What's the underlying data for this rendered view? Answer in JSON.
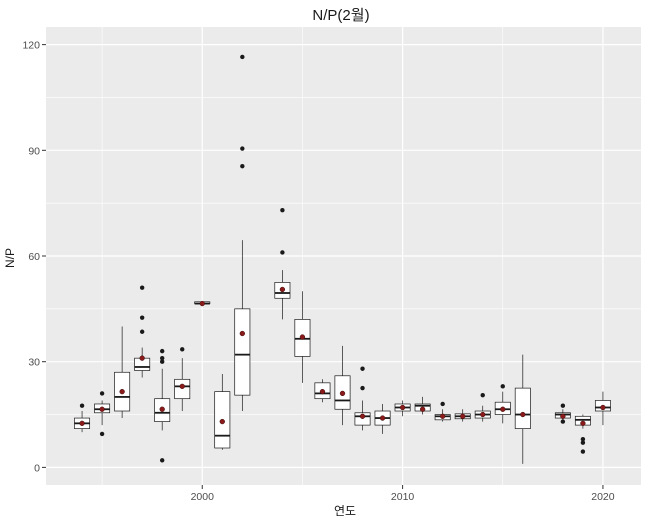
{
  "chart_data": {
    "type": "boxplot",
    "title": "N/P(2월)",
    "xlabel": "연도",
    "ylabel": "N/P",
    "xlim": [
      1992.2,
      2021.9
    ],
    "ylim": [
      -5,
      125
    ],
    "x_ticks": [
      2000,
      2010,
      2020
    ],
    "y_ticks": [
      0,
      30,
      60,
      90,
      120
    ],
    "grid": true,
    "colors": {
      "panel": "#EBEBEB",
      "grid": "#FFFFFF",
      "box_fill": "#FFFFFF",
      "box_line": "#1A1A1A",
      "outlier": "#1A1A1A",
      "mean_point": "#8B1A1A"
    },
    "boxes": [
      {
        "x": 1994,
        "lw": 10,
        "q1": 11,
        "med": 12.5,
        "q3": 14,
        "uw": 16,
        "mean": 12.5,
        "out": [
          17.5
        ]
      },
      {
        "x": 1995,
        "lw": 12,
        "q1": 15.5,
        "med": 16.5,
        "q3": 18,
        "uw": 19,
        "mean": 16.5,
        "out": [
          9.5,
          21
        ]
      },
      {
        "x": 1996,
        "lw": 14,
        "q1": 16,
        "med": 20,
        "q3": 27,
        "uw": 40,
        "mean": 21.5,
        "out": []
      },
      {
        "x": 1997,
        "lw": 25.5,
        "q1": 27.5,
        "med": 28.5,
        "q3": 31,
        "uw": 34,
        "mean": 31,
        "out": [
          38.5,
          42.5,
          51
        ]
      },
      {
        "x": 1998,
        "lw": 10.5,
        "q1": 13,
        "med": 15.5,
        "q3": 19.5,
        "uw": 28,
        "mean": 16.5,
        "out": [
          30,
          31,
          33,
          2
        ]
      },
      {
        "x": 1999,
        "lw": 16,
        "q1": 19.5,
        "med": 23,
        "q3": 25,
        "uw": 31,
        "mean": 23,
        "out": [
          33.5
        ]
      },
      {
        "x": 2000,
        "lw": 46.5,
        "q1": 46.5,
        "med": 46.5,
        "q3": 47,
        "uw": 47,
        "mean": 46.5,
        "out": []
      },
      {
        "x": 2001,
        "lw": 5,
        "q1": 5.5,
        "med": 9,
        "q3": 21.5,
        "uw": 26.5,
        "mean": 13,
        "out": []
      },
      {
        "x": 2002,
        "lw": 16,
        "q1": 20.5,
        "med": 32,
        "q3": 45,
        "uw": 64.5,
        "mean": 38,
        "out": [
          85.5,
          90.5,
          116.5
        ]
      },
      {
        "x": 2004,
        "lw": 42,
        "q1": 48,
        "med": 49.5,
        "q3": 52.5,
        "uw": 56,
        "mean": 50.5,
        "out": [
          61,
          73
        ]
      },
      {
        "x": 2005,
        "lw": 24,
        "q1": 31.5,
        "med": 36.5,
        "q3": 42,
        "uw": 50,
        "mean": 37,
        "out": []
      },
      {
        "x": 2006,
        "lw": 18.5,
        "q1": 19.5,
        "med": 21,
        "q3": 24,
        "uw": 25,
        "mean": 21.5,
        "out": []
      },
      {
        "x": 2007,
        "lw": 12,
        "q1": 16.5,
        "med": 19,
        "q3": 26,
        "uw": 34.5,
        "mean": 21,
        "out": []
      },
      {
        "x": 2008,
        "lw": 10.5,
        "q1": 12,
        "med": 14.5,
        "q3": 15.5,
        "uw": 19,
        "mean": 14.5,
        "out": [
          22.5,
          28
        ]
      },
      {
        "x": 2009,
        "lw": 9.5,
        "q1": 12,
        "med": 14,
        "q3": 16,
        "uw": 18,
        "mean": 14,
        "out": []
      },
      {
        "x": 2010,
        "lw": 14.5,
        "q1": 16,
        "med": 17,
        "q3": 18,
        "uw": 19,
        "mean": 17,
        "out": []
      },
      {
        "x": 2011,
        "lw": 15,
        "q1": 16,
        "med": 17.5,
        "q3": 18,
        "uw": 20,
        "mean": 16.5,
        "out": []
      },
      {
        "x": 2012,
        "lw": 13,
        "q1": 13.5,
        "med": 14.5,
        "q3": 15,
        "uw": 16.5,
        "mean": 14.5,
        "out": [
          18
        ]
      },
      {
        "x": 2013,
        "lw": 13,
        "q1": 13.8,
        "med": 14.5,
        "q3": 15.2,
        "uw": 16.5,
        "mean": 14.5,
        "out": []
      },
      {
        "x": 2014,
        "lw": 13,
        "q1": 14,
        "med": 15,
        "q3": 16,
        "uw": 17.5,
        "mean": 15,
        "out": [
          20.5
        ]
      },
      {
        "x": 2015,
        "lw": 12.5,
        "q1": 15,
        "med": 16.5,
        "q3": 18.5,
        "uw": 21.5,
        "mean": 16.5,
        "out": [
          23
        ]
      },
      {
        "x": 2016,
        "lw": 1,
        "q1": 11,
        "med": 15,
        "q3": 22.5,
        "uw": 32,
        "mean": 15,
        "out": []
      },
      {
        "x": 2018,
        "lw": 13,
        "q1": 14,
        "med": 15,
        "q3": 15.5,
        "uw": 16.5,
        "mean": 14.5,
        "out": [
          17.5,
          13
        ]
      },
      {
        "x": 2019,
        "lw": 11,
        "q1": 12,
        "med": 13.5,
        "q3": 14.5,
        "uw": 15,
        "mean": 12.5,
        "out": [
          4.5,
          7,
          8
        ]
      },
      {
        "x": 2020,
        "lw": 12,
        "q1": 16,
        "med": 17,
        "q3": 19,
        "uw": 21.5,
        "mean": 17,
        "out": []
      }
    ]
  }
}
